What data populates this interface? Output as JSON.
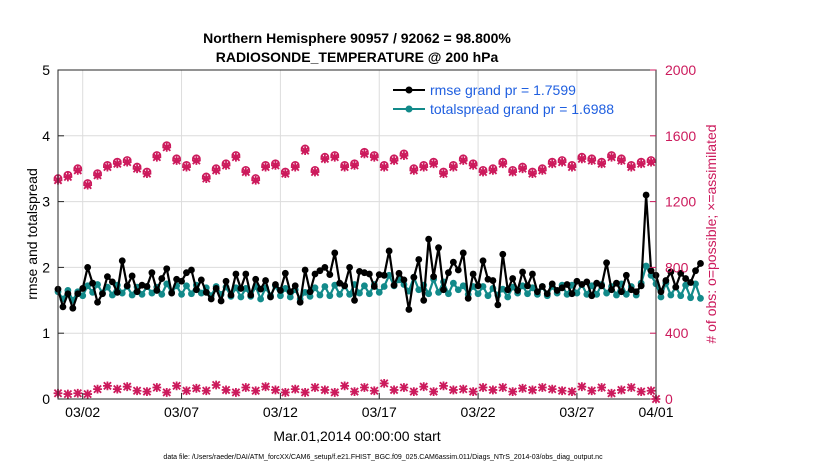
{
  "chart_data": {
    "type": "line",
    "title_line1": "Northern Hemisphere 90957 / 92062 = 98.800%",
    "title_line2": "RADIOSONDE_TEMPERATURE @ 200 hPa",
    "xlabel": "Mar.01,2014 00:00:00 start",
    "ylabel_left": "rmse and totalspread",
    "ylabel_right": "# of obs: o=possible; ×=assimilated",
    "left_ylim": [
      0,
      5
    ],
    "right_ylim": [
      0,
      2000
    ],
    "left_ticks": [
      "0",
      "1",
      "2",
      "3",
      "4",
      "5"
    ],
    "right_ticks": [
      "0",
      "400",
      "800",
      "1200",
      "1600",
      "2000"
    ],
    "x_range_days": [
      0.75,
      31.0
    ],
    "x_ticks": [
      {
        "day": 2,
        "label": "03/02"
      },
      {
        "day": 7,
        "label": "03/07"
      },
      {
        "day": 12,
        "label": "03/12"
      },
      {
        "day": 17,
        "label": "03/17"
      },
      {
        "day": 22,
        "label": "03/22"
      },
      {
        "day": 27,
        "label": "03/27"
      },
      {
        "day": 32,
        "label": "04/01"
      }
    ],
    "x_start_day": 0.75,
    "x_step_day": 0.25,
    "grid": true,
    "legend_position": "top-right",
    "legend": [
      {
        "label": "rmse grand pr = 1.7599",
        "color": "#000000"
      },
      {
        "label": "totalspread grand pr = 1.6988",
        "color": "#128a8a"
      }
    ],
    "series": [
      {
        "name": "rmse",
        "axis": "left",
        "color": "#000000",
        "values": [
          1.67,
          1.4,
          1.6,
          1.38,
          1.6,
          1.68,
          2.0,
          1.76,
          1.47,
          1.6,
          1.86,
          1.78,
          1.62,
          2.1,
          1.72,
          1.87,
          1.63,
          1.73,
          1.71,
          1.92,
          1.65,
          1.83,
          1.98,
          1.61,
          1.82,
          1.79,
          1.92,
          1.96,
          1.66,
          1.81,
          1.62,
          1.52,
          1.68,
          1.49,
          1.79,
          1.58,
          1.9,
          1.68,
          1.9,
          1.58,
          1.82,
          1.67,
          1.8,
          1.55,
          1.74,
          1.65,
          1.91,
          1.63,
          1.72,
          1.47,
          1.96,
          1.63,
          1.9,
          1.95,
          2.0,
          1.89,
          2.22,
          1.76,
          1.72,
          2.0,
          1.5,
          1.94,
          1.92,
          1.9,
          1.71,
          1.89,
          1.88,
          2.25,
          1.73,
          1.91,
          1.81,
          1.36,
          1.85,
          2.12,
          1.5,
          2.43,
          1.86,
          2.3,
          1.66,
          1.92,
          2.08,
          1.96,
          2.22,
          1.53,
          1.9,
          1.72,
          2.1,
          1.82,
          1.8,
          1.43,
          2.2,
          1.66,
          1.83,
          1.65,
          1.93,
          1.72,
          1.9,
          1.63,
          1.71,
          1.6,
          1.75,
          1.65,
          1.69,
          1.74,
          1.6,
          1.79,
          1.74,
          1.78,
          1.57,
          1.76,
          1.72,
          2.07,
          1.66,
          1.76,
          1.63,
          1.88,
          1.66,
          1.63,
          1.72,
          3.1,
          1.95,
          1.88,
          1.63,
          1.8,
          1.93,
          1.7,
          1.91,
          1.83,
          1.77,
          1.95,
          2.06
        ]
      },
      {
        "name": "totalspread",
        "axis": "left",
        "color": "#128a8a",
        "values": [
          1.63,
          1.52,
          1.65,
          1.5,
          1.63,
          1.57,
          1.72,
          1.62,
          1.74,
          1.61,
          1.7,
          1.58,
          1.73,
          1.61,
          1.71,
          1.58,
          1.7,
          1.59,
          1.71,
          1.61,
          1.7,
          1.59,
          1.75,
          1.62,
          1.72,
          1.59,
          1.72,
          1.6,
          1.73,
          1.61,
          1.69,
          1.57,
          1.71,
          1.59,
          1.7,
          1.56,
          1.69,
          1.55,
          1.68,
          1.56,
          1.71,
          1.52,
          1.69,
          1.57,
          1.72,
          1.57,
          1.68,
          1.55,
          1.66,
          1.52,
          1.62,
          1.56,
          1.69,
          1.58,
          1.71,
          1.57,
          1.73,
          1.59,
          1.72,
          1.59,
          1.74,
          1.61,
          1.72,
          1.6,
          1.74,
          1.62,
          1.71,
          1.88,
          1.72,
          1.81,
          1.74,
          1.64,
          1.85,
          1.66,
          1.73,
          1.6,
          1.82,
          1.62,
          1.78,
          1.6,
          1.76,
          1.66,
          1.72,
          1.59,
          1.71,
          1.6,
          1.71,
          1.57,
          1.68,
          1.58,
          1.67,
          1.55,
          1.7,
          1.61,
          1.72,
          1.6,
          1.69,
          1.59,
          1.71,
          1.57,
          1.71,
          1.61,
          1.73,
          1.59,
          1.73,
          1.61,
          1.74,
          1.59,
          1.72,
          1.59,
          1.74,
          1.61,
          1.71,
          1.58,
          1.75,
          1.59,
          1.71,
          1.58,
          1.76,
          2.02,
          1.88,
          1.75,
          1.55,
          1.76,
          1.58,
          1.7,
          1.57,
          1.73,
          1.54,
          1.75,
          1.53
        ]
      },
      {
        "name": "obs_possible",
        "axis": "right",
        "marker": "o",
        "color": "#cc1a5c",
        "x": [
          0.75,
          1.25,
          1.75,
          2.25,
          2.75,
          3.25,
          3.75,
          4.25,
          4.75,
          5.25,
          5.75,
          6.25,
          6.75,
          7.25,
          7.75,
          8.25,
          8.75,
          9.25,
          9.75,
          10.25,
          10.75,
          11.25,
          11.75,
          12.25,
          12.75,
          13.25,
          13.75,
          14.25,
          14.75,
          15.25,
          15.75,
          16.25,
          16.75,
          17.25,
          17.75,
          18.25,
          18.75,
          19.25,
          19.75,
          20.25,
          20.75,
          21.25,
          21.75,
          22.25,
          22.75,
          23.25,
          23.75,
          24.25,
          24.75,
          25.25,
          25.75,
          26.25,
          26.75,
          27.25,
          27.75,
          28.25,
          28.75,
          29.25,
          29.75,
          30.25,
          30.75
        ],
        "values": [
          1340,
          1360,
          1400,
          1310,
          1370,
          1420,
          1440,
          1450,
          1410,
          1380,
          1480,
          1540,
          1460,
          1420,
          1460,
          1350,
          1400,
          1430,
          1480,
          1390,
          1340,
          1420,
          1430,
          1380,
          1420,
          1520,
          1390,
          1470,
          1480,
          1420,
          1430,
          1500,
          1480,
          1420,
          1460,
          1490,
          1400,
          1420,
          1440,
          1380,
          1420,
          1460,
          1430,
          1390,
          1400,
          1440,
          1390,
          1410,
          1380,
          1400,
          1440,
          1450,
          1420,
          1470,
          1460,
          1440,
          1480,
          1460,
          1420,
          1440,
          1450
        ]
      },
      {
        "name": "obs_assimilated",
        "axis": "right",
        "marker": "x",
        "color": "#cc1a5c",
        "x": [
          0.75,
          1.25,
          1.75,
          2.25,
          2.75,
          3.25,
          3.75,
          4.25,
          4.75,
          5.25,
          5.75,
          6.25,
          6.75,
          7.25,
          7.75,
          8.25,
          8.75,
          9.25,
          9.75,
          10.25,
          10.75,
          11.25,
          11.75,
          12.25,
          12.75,
          13.25,
          13.75,
          14.25,
          14.75,
          15.25,
          15.75,
          16.25,
          16.75,
          17.25,
          17.75,
          18.25,
          18.75,
          19.25,
          19.75,
          20.25,
          20.75,
          21.25,
          21.75,
          22.25,
          22.75,
          23.25,
          23.75,
          24.25,
          24.75,
          25.25,
          25.75,
          26.25,
          26.75,
          27.25,
          27.75,
          28.25,
          28.75,
          29.25,
          29.75,
          30.25,
          30.75
        ],
        "values": [
          1330,
          1350,
          1390,
          1300,
          1360,
          1410,
          1430,
          1440,
          1400,
          1370,
          1470,
          1530,
          1450,
          1410,
          1450,
          1340,
          1390,
          1420,
          1470,
          1380,
          1330,
          1410,
          1420,
          1370,
          1410,
          1510,
          1380,
          1460,
          1470,
          1410,
          1420,
          1490,
          1470,
          1410,
          1450,
          1480,
          1390,
          1410,
          1430,
          1370,
          1410,
          1450,
          1420,
          1380,
          1390,
          1430,
          1380,
          1400,
          1370,
          1390,
          1430,
          1440,
          1410,
          1460,
          1450,
          1430,
          1470,
          1450,
          1410,
          1430,
          1440
        ]
      },
      {
        "name": "obs_low",
        "axis": "right",
        "marker": "x",
        "color": "#cc1a5c",
        "x": [
          0.75,
          1.25,
          1.75,
          2.25,
          2.75,
          3.25,
          3.75,
          4.25,
          4.75,
          5.25,
          5.75,
          6.25,
          6.75,
          7.25,
          7.75,
          8.25,
          8.75,
          9.25,
          9.75,
          10.25,
          10.75,
          11.25,
          11.75,
          12.25,
          12.75,
          13.25,
          13.75,
          14.25,
          14.75,
          15.25,
          15.75,
          16.25,
          16.75,
          17.25,
          17.75,
          18.25,
          18.75,
          19.25,
          19.75,
          20.25,
          20.75,
          21.25,
          21.75,
          22.25,
          22.75,
          23.25,
          23.75,
          24.25,
          24.75,
          25.25,
          25.75,
          26.25,
          26.75,
          27.25,
          27.75,
          28.25,
          28.75,
          29.25,
          29.75,
          30.25,
          30.75,
          31.0
        ],
        "values": [
          35,
          30,
          35,
          30,
          60,
          80,
          60,
          75,
          50,
          45,
          70,
          40,
          80,
          50,
          65,
          50,
          85,
          55,
          40,
          70,
          50,
          75,
          55,
          40,
          60,
          40,
          70,
          55,
          40,
          80,
          45,
          70,
          50,
          95,
          55,
          70,
          45,
          75,
          45,
          80,
          55,
          60,
          45,
          70,
          55,
          70,
          45,
          65,
          55,
          70,
          60,
          50,
          45,
          75,
          50,
          70,
          35,
          55,
          70,
          45,
          50,
          0
        ]
      }
    ]
  },
  "footnote": "data file: /Users/raeder/DAI/ATM_forcXX/CAM6_setup/f.e21.FHIST_BGC.f09_025.CAM6assim.011/Diags_NTrS_2014-03/obs_diag_output.nc"
}
